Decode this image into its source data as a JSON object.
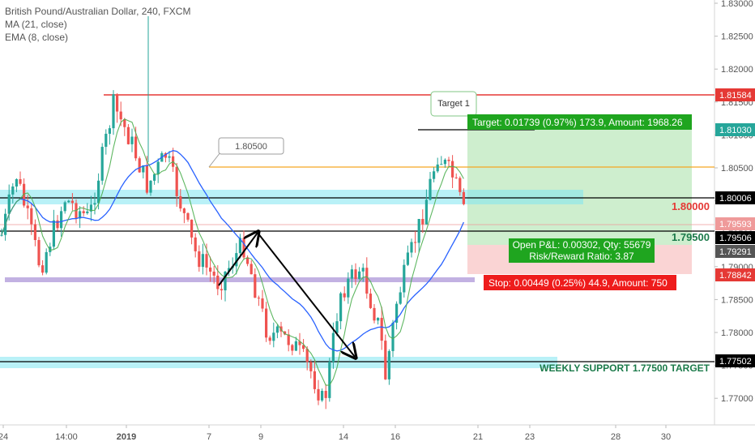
{
  "chart": {
    "symbol_line": "British Pound/Australian Dollar, 240, FXCM",
    "indicators": [
      "MA (21, close)",
      "EMA (8, close)"
    ]
  },
  "colors": {
    "up": "#26a69a",
    "down": "#ef5350",
    "ma": "#2962ff",
    "ema": "#4caf50",
    "resistance": "#e53935",
    "orange_line": "#f5a623",
    "purple_band": "#b39ddb",
    "cyan_band": "#7fe5f0",
    "target_zone": "#b8e6b8",
    "stop_zone": "#f8c7c7"
  },
  "y_axis": {
    "ticks": [
      "1.83000",
      "1.82500",
      "1.82000",
      "1.81500",
      "1.81000",
      "1.80500",
      "1.80000",
      "1.79500",
      "1.79000",
      "1.78500",
      "1.78000",
      "1.77500",
      "1.77000"
    ],
    "tags": [
      {
        "value": "1.81584",
        "color": "#e53935"
      },
      {
        "value": "1.81030",
        "color": "#26a69a"
      },
      {
        "value": "1.80006",
        "color": "#000000"
      },
      {
        "value": "1.79593",
        "color": "#ef9a9a"
      },
      {
        "value": "1.79506",
        "color": "#000000"
      },
      {
        "value": "1.79291",
        "color": "#555555"
      },
      {
        "value": "1.78842",
        "color": "#e53935"
      },
      {
        "value": "1.77502",
        "color": "#000000"
      }
    ]
  },
  "x_axis": {
    "ticks": [
      "24",
      "14:00",
      "2019",
      "7",
      "9",
      "14",
      "16",
      "21",
      "23",
      "28",
      "30"
    ]
  },
  "annotations": {
    "level_180000": "1.80000",
    "level_179500": "1.79500",
    "weekly_support": "WEEKLY SUPPORT 1.77500 TARGET",
    "callout_180500": "1.80500",
    "target1": "Target 1",
    "target_box": "Target: 0.01739 (0.97%) 173.9, Amount: 1968.26",
    "pnl_line1": "Open P&L: 0.00302, Qty: 55679",
    "pnl_line2": "Risk/Reward Ratio: 3.87",
    "stop_box": "Stop: 0.00449 (0.25%) 44.9, Amount: 750"
  }
}
